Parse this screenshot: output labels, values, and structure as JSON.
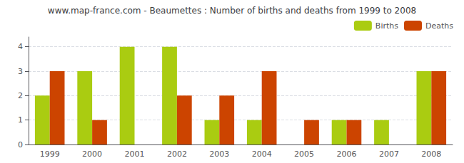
{
  "chart_data": {
    "type": "bar",
    "title": "www.map-france.com - Beaumettes : Number of births and deaths from 1999 to 2008",
    "categories": [
      "1999",
      "2000",
      "2001",
      "2002",
      "2003",
      "2004",
      "2005",
      "2006",
      "2007",
      "2008"
    ],
    "series": [
      {
        "name": "Births",
        "color": "#aacc11",
        "values": [
          2,
          3,
          4,
          4,
          1,
          1,
          0,
          1,
          1,
          3
        ]
      },
      {
        "name": "Deaths",
        "color": "#cc4400",
        "values": [
          3,
          1,
          0,
          2,
          2,
          3,
          1,
          1,
          0,
          3
        ]
      }
    ],
    "ylim": [
      0,
      4.4
    ],
    "yticks": [
      0,
      1,
      2,
      3,
      4
    ],
    "grid": true,
    "legend": "upper right"
  }
}
